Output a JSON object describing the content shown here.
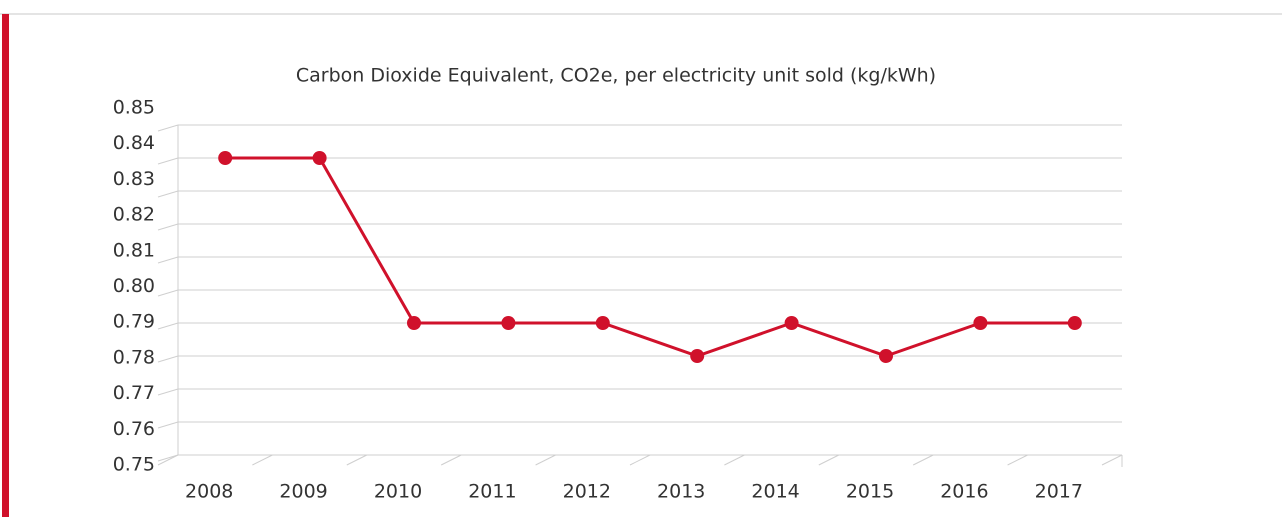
{
  "chart_data": {
    "type": "line",
    "title": "Carbon Dioxide Equivalent, CO2e, per electricity unit sold (kg/kWh)",
    "categories": [
      "2008",
      "2009",
      "2010",
      "2011",
      "2012",
      "2013",
      "2014",
      "2015",
      "2016",
      "2017"
    ],
    "series": [
      {
        "name": "CO2e",
        "color": "#d0112b",
        "values": [
          0.84,
          0.84,
          0.79,
          0.79,
          0.79,
          0.78,
          0.79,
          0.78,
          0.79,
          0.79
        ]
      }
    ],
    "ylim": [
      0.75,
      0.85
    ],
    "yticks": [
      0.75,
      0.76,
      0.77,
      0.78,
      0.79,
      {
        "value": 0.8,
        "label": "0.80"
      },
      0.81,
      0.82,
      0.83,
      0.84,
      0.85
    ],
    "grid": true
  }
}
